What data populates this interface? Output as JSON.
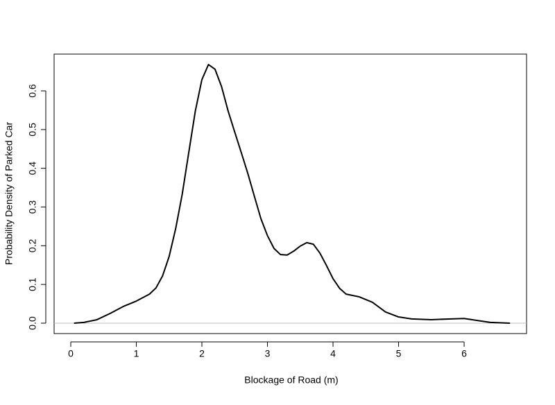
{
  "chart_data": {
    "type": "line",
    "xlabel": "Blockage of Road (m)",
    "ylabel": "Probability Density of Parked Car",
    "x": [
      0.05,
      0.2,
      0.4,
      0.6,
      0.8,
      1.0,
      1.2,
      1.3,
      1.4,
      1.5,
      1.6,
      1.7,
      1.8,
      1.9,
      2.0,
      2.1,
      2.2,
      2.3,
      2.4,
      2.5,
      2.6,
      2.7,
      2.8,
      2.9,
      3.0,
      3.1,
      3.2,
      3.3,
      3.4,
      3.5,
      3.6,
      3.7,
      3.8,
      3.9,
      4.0,
      4.1,
      4.2,
      4.4,
      4.6,
      4.8,
      5.0,
      5.2,
      5.5,
      5.8,
      6.0,
      6.2,
      6.4,
      6.7
    ],
    "y": [
      0.0,
      0.002,
      0.009,
      0.025,
      0.043,
      0.057,
      0.075,
      0.091,
      0.122,
      0.172,
      0.244,
      0.333,
      0.441,
      0.548,
      0.629,
      0.668,
      0.656,
      0.611,
      0.548,
      0.494,
      0.441,
      0.387,
      0.328,
      0.27,
      0.226,
      0.193,
      0.177,
      0.176,
      0.186,
      0.199,
      0.208,
      0.204,
      0.181,
      0.149,
      0.115,
      0.09,
      0.075,
      0.068,
      0.054,
      0.029,
      0.016,
      0.011,
      0.009,
      0.011,
      0.012,
      0.007,
      0.002,
      0.0
    ],
    "color": "#000000",
    "hline": 0,
    "hline_color": "#bebebe",
    "xlim": [
      -0.254,
      6.952
    ],
    "ylim": [
      -0.0269,
      0.695
    ],
    "xticks": [
      0,
      1,
      2,
      3,
      4,
      5,
      6
    ],
    "yticks": [
      {
        "value": 0,
        "label": "0.0"
      },
      0.1,
      0.2,
      0.3,
      0.4,
      0.5,
      0.6
    ]
  }
}
